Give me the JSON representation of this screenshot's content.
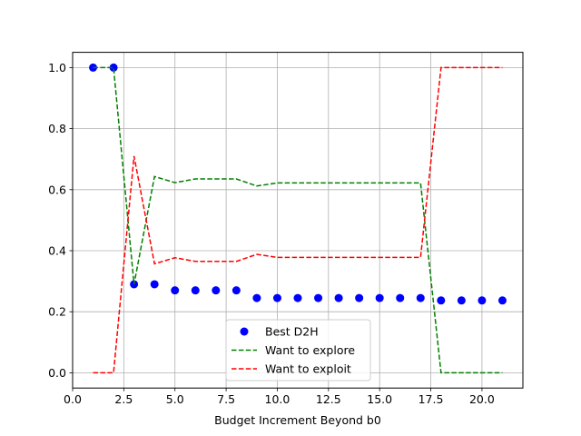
{
  "chart_data": {
    "type": "line",
    "title": "",
    "xlabel": "Budget Increment Beyond b0",
    "ylabel": "",
    "xlim": [
      0,
      22
    ],
    "ylim": [
      -0.05,
      1.05
    ],
    "grid": true,
    "legend_position": "lower-center",
    "x_ticks": [
      "0.0",
      "2.5",
      "5.0",
      "7.5",
      "10.0",
      "12.5",
      "15.0",
      "17.5",
      "20.0"
    ],
    "y_ticks": [
      "0.0",
      "0.2",
      "0.4",
      "0.6",
      "0.8",
      "1.0"
    ],
    "x": [
      1,
      2,
      3,
      4,
      5,
      6,
      7,
      8,
      9,
      10,
      11,
      12,
      13,
      14,
      15,
      16,
      17,
      18,
      19,
      20,
      21
    ],
    "series": [
      {
        "name": "Best D2H",
        "style": "scatter",
        "color": "#0000ff",
        "values": [
          1.0,
          1.0,
          0.29,
          0.29,
          0.27,
          0.27,
          0.27,
          0.27,
          0.245,
          0.245,
          0.245,
          0.245,
          0.245,
          0.245,
          0.245,
          0.245,
          0.245,
          0.237,
          0.237,
          0.237,
          0.237
        ]
      },
      {
        "name": "Want to explore",
        "style": "dashed-line",
        "color": "#008000",
        "values": [
          1.0,
          1.0,
          0.29,
          0.643,
          0.623,
          0.635,
          0.635,
          0.635,
          0.612,
          0.622,
          0.622,
          0.622,
          0.622,
          0.622,
          0.622,
          0.622,
          0.622,
          0.0,
          0.0,
          0.0,
          0.0
        ]
      },
      {
        "name": "Want to exploit",
        "style": "dashed-line",
        "color": "#ff0000",
        "values": [
          0.0,
          0.0,
          0.71,
          0.357,
          0.377,
          0.365,
          0.365,
          0.365,
          0.388,
          0.378,
          0.378,
          0.378,
          0.378,
          0.378,
          0.378,
          0.378,
          0.378,
          1.0,
          1.0,
          1.0,
          1.0
        ]
      }
    ]
  }
}
